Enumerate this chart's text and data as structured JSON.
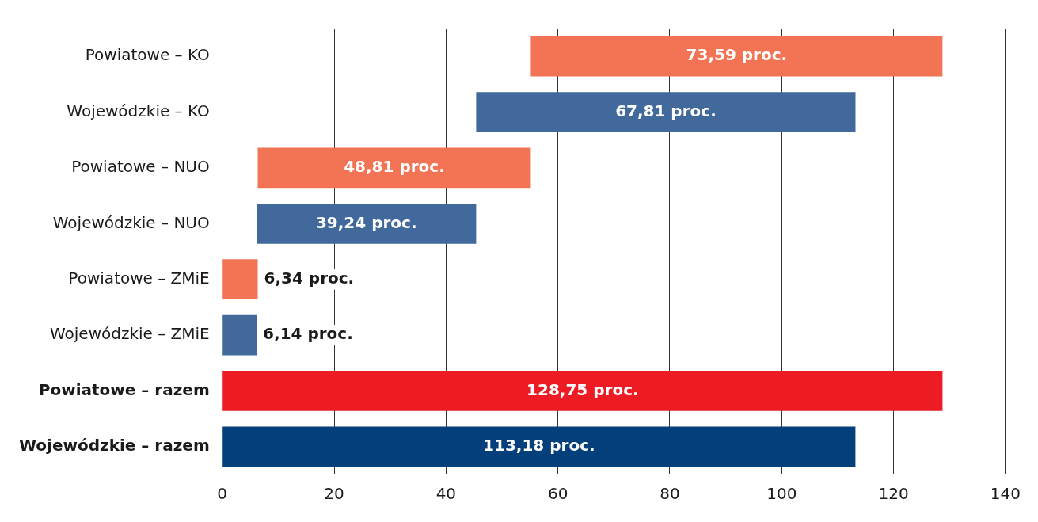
{
  "chart_data": {
    "type": "bar",
    "orientation": "horizontal",
    "categories": [
      "Powiatowe – KO",
      "Wojewódzkie – KO",
      "Powiatowe – NUO",
      "Wojewódzkie – NUO",
      "Powiatowe – ZMiE",
      "Wojewódzkie – ZMiE",
      "Powiatowe – razem",
      "Wojewódzkie – razem"
    ],
    "values": [
      73.59,
      67.81,
      48.81,
      39.24,
      6.34,
      6.14,
      128.75,
      113.18
    ],
    "base": [
      55.15,
      45.38,
      6.34,
      6.14,
      0,
      0,
      0,
      0
    ],
    "colors": [
      "#f27455",
      "#41699c",
      "#f27455",
      "#41699c",
      "#f27455",
      "#41699c",
      "#ed1c24",
      "#033f7a"
    ],
    "value_labels": [
      "73,59 proc.",
      "67,81 proc.",
      "48,81 proc.",
      "39,24 proc.",
      "6,34 proc.",
      "6,14 proc.",
      "128,75 proc.",
      "113,18 proc."
    ],
    "xlim": [
      0,
      140
    ],
    "xticks": [
      0,
      20,
      40,
      60,
      80,
      100,
      120,
      140
    ],
    "grid": "x",
    "legend": false
  }
}
